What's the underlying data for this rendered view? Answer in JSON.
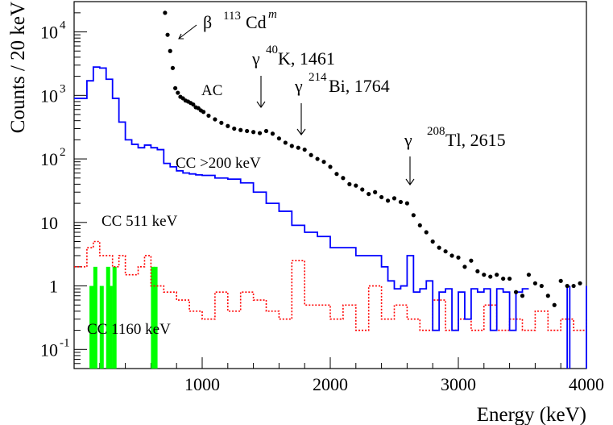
{
  "chart_data": {
    "type": "line",
    "xlabel": "Energy (keV)",
    "ylabel": "Counts / 20 keV",
    "x_ticks": [
      "1000",
      "2000",
      "3000",
      "4000"
    ],
    "y_ticks": [
      {
        "value": 0.1,
        "base": "10",
        "exp": "-1"
      },
      {
        "value": 1,
        "base": "1",
        "exp": ""
      },
      {
        "value": 10,
        "base": "10",
        "exp": ""
      },
      {
        "value": 100,
        "base": "10",
        "exp": "2"
      },
      {
        "value": 1000,
        "base": "10",
        "exp": "3"
      },
      {
        "value": 10000,
        "base": "10",
        "exp": "4"
      }
    ],
    "xlim": [
      0,
      4000
    ],
    "ylim": [
      0.05,
      30000
    ],
    "y_scale": "log",
    "series": [
      {
        "name": "AC",
        "style": "points",
        "color": "#000000",
        "x": [
          710,
          730,
          750,
          770,
          790,
          810,
          830,
          850,
          870,
          890,
          910,
          930,
          950,
          970,
          990,
          1010,
          1050,
          1100,
          1150,
          1200,
          1250,
          1300,
          1350,
          1400,
          1450,
          1500,
          1550,
          1600,
          1650,
          1700,
          1750,
          1800,
          1850,
          1900,
          1950,
          2000,
          2050,
          2100,
          2150,
          2200,
          2250,
          2300,
          2350,
          2400,
          2450,
          2500,
          2550,
          2600,
          2650,
          2700,
          2750,
          2800,
          2850,
          2900,
          2950,
          3000,
          3050,
          3100,
          3150,
          3200,
          3250,
          3300,
          3350,
          3400,
          3450,
          3500,
          3550,
          3600,
          3650,
          3700,
          3750,
          3800,
          3850,
          3900,
          3950
        ],
        "y": [
          20000,
          9000,
          5000,
          2700,
          1300,
          1100,
          950,
          900,
          830,
          800,
          760,
          720,
          650,
          630,
          580,
          550,
          480,
          420,
          370,
          330,
          300,
          285,
          275,
          265,
          255,
          275,
          250,
          210,
          180,
          160,
          150,
          140,
          115,
          100,
          90,
          75,
          58,
          50,
          40,
          38,
          33,
          28,
          30,
          25,
          22,
          24,
          21,
          20,
          13,
          9,
          7,
          5,
          4,
          3.5,
          3,
          2.8,
          2,
          2.5,
          1.7,
          1.5,
          1.4,
          1.5,
          1.3,
          1.3,
          0.8,
          0.7,
          1.5,
          1.1,
          1.0,
          0.7,
          0.5,
          1.2,
          1.0,
          1.0,
          1.1
        ]
      },
      {
        "name": "CC >200 keV",
        "style": "step",
        "color": "#0000ff",
        "x": [
          0,
          100,
          150,
          200,
          250,
          300,
          350,
          400,
          450,
          500,
          550,
          600,
          650,
          700,
          750,
          800,
          850,
          900,
          950,
          1000,
          1100,
          1200,
          1300,
          1400,
          1500,
          1600,
          1700,
          1800,
          1900,
          2000,
          2100,
          2200,
          2300,
          2400,
          2450,
          2500,
          2550,
          2600,
          2650,
          2700,
          2750,
          2800,
          2850,
          2900,
          2950,
          3000,
          3050,
          3100,
          3150,
          3200,
          3250,
          3300,
          3350,
          3400,
          3450,
          3500
        ],
        "y": [
          900,
          1700,
          2800,
          2700,
          1800,
          900,
          380,
          200,
          170,
          150,
          165,
          150,
          140,
          85,
          75,
          65,
          60,
          58,
          56,
          55,
          50,
          48,
          42,
          30,
          20,
          15,
          9,
          7,
          6,
          4,
          4,
          3,
          3,
          2,
          1.2,
          0.9,
          1.0,
          3,
          0.8,
          0.9,
          1.2,
          0.2,
          0.8,
          0.9,
          0.2,
          0.8,
          0.3,
          0.9,
          0.8,
          0.9,
          0.2,
          0.9,
          0.8,
          0.2,
          0.8,
          0.9
        ]
      },
      {
        "name": "CC 511 keV",
        "style": "step-dotted",
        "color": "#ff0000",
        "x": [
          0,
          100,
          150,
          200,
          300,
          350,
          400,
          500,
          550,
          600,
          700,
          800,
          900,
          1000,
          1100,
          1200,
          1300,
          1400,
          1500,
          1600,
          1700,
          1800,
          1900,
          2000,
          2100,
          2200,
          2300,
          2400,
          2500,
          2600,
          2700,
          2800,
          2900,
          3000,
          3100,
          3200,
          3300,
          3400,
          3500,
          3600,
          3700,
          3800,
          3900,
          4000
        ],
        "y": [
          2,
          4,
          5,
          3,
          2,
          3,
          1.5,
          2,
          3,
          1,
          0.8,
          0.6,
          0.4,
          0.3,
          0.8,
          0.4,
          0.8,
          0.6,
          0.4,
          0.3,
          2.5,
          0.5,
          0.5,
          0.3,
          0.5,
          0.2,
          1,
          0.3,
          0.5,
          0.3,
          0.2,
          0.6,
          0.2,
          0.3,
          0.2,
          0.5,
          0.2,
          0.3,
          0.2,
          0.4,
          0.2,
          0.3,
          0.2,
          0.3
        ]
      },
      {
        "name": "CC 1160 keV",
        "style": "bars",
        "color": "#00ff00",
        "x": [
          120,
          150,
          200,
          250,
          270,
          300,
          600,
          620
        ],
        "y": [
          1,
          2,
          1,
          2,
          1,
          2,
          2,
          2
        ]
      }
    ],
    "annotations": [
      {
        "label": "AC",
        "x_data": 920,
        "y_data": 700
      },
      {
        "label": "CC >200 keV",
        "x_data": 600,
        "y_data": 55
      },
      {
        "label": "CC 511 keV",
        "x_data": 400,
        "y_data": 12
      },
      {
        "label": "CC 1160 keV",
        "x_data": 350,
        "y_data": 0.12
      }
    ],
    "lines": [
      {
        "isotope_prefix": "β",
        "mass": "113",
        "element": "Cd",
        "state": "m",
        "energy": ""
      },
      {
        "isotope_prefix": "γ",
        "mass": "40",
        "element": "K",
        "state": "",
        "energy": ", 1461"
      },
      {
        "isotope_prefix": "γ",
        "mass": "214",
        "element": "Bi",
        "state": "",
        "energy": ", 1764"
      },
      {
        "isotope_prefix": "γ",
        "mass": "208",
        "element": "Tl",
        "state": "",
        "energy": ", 2615"
      }
    ]
  }
}
